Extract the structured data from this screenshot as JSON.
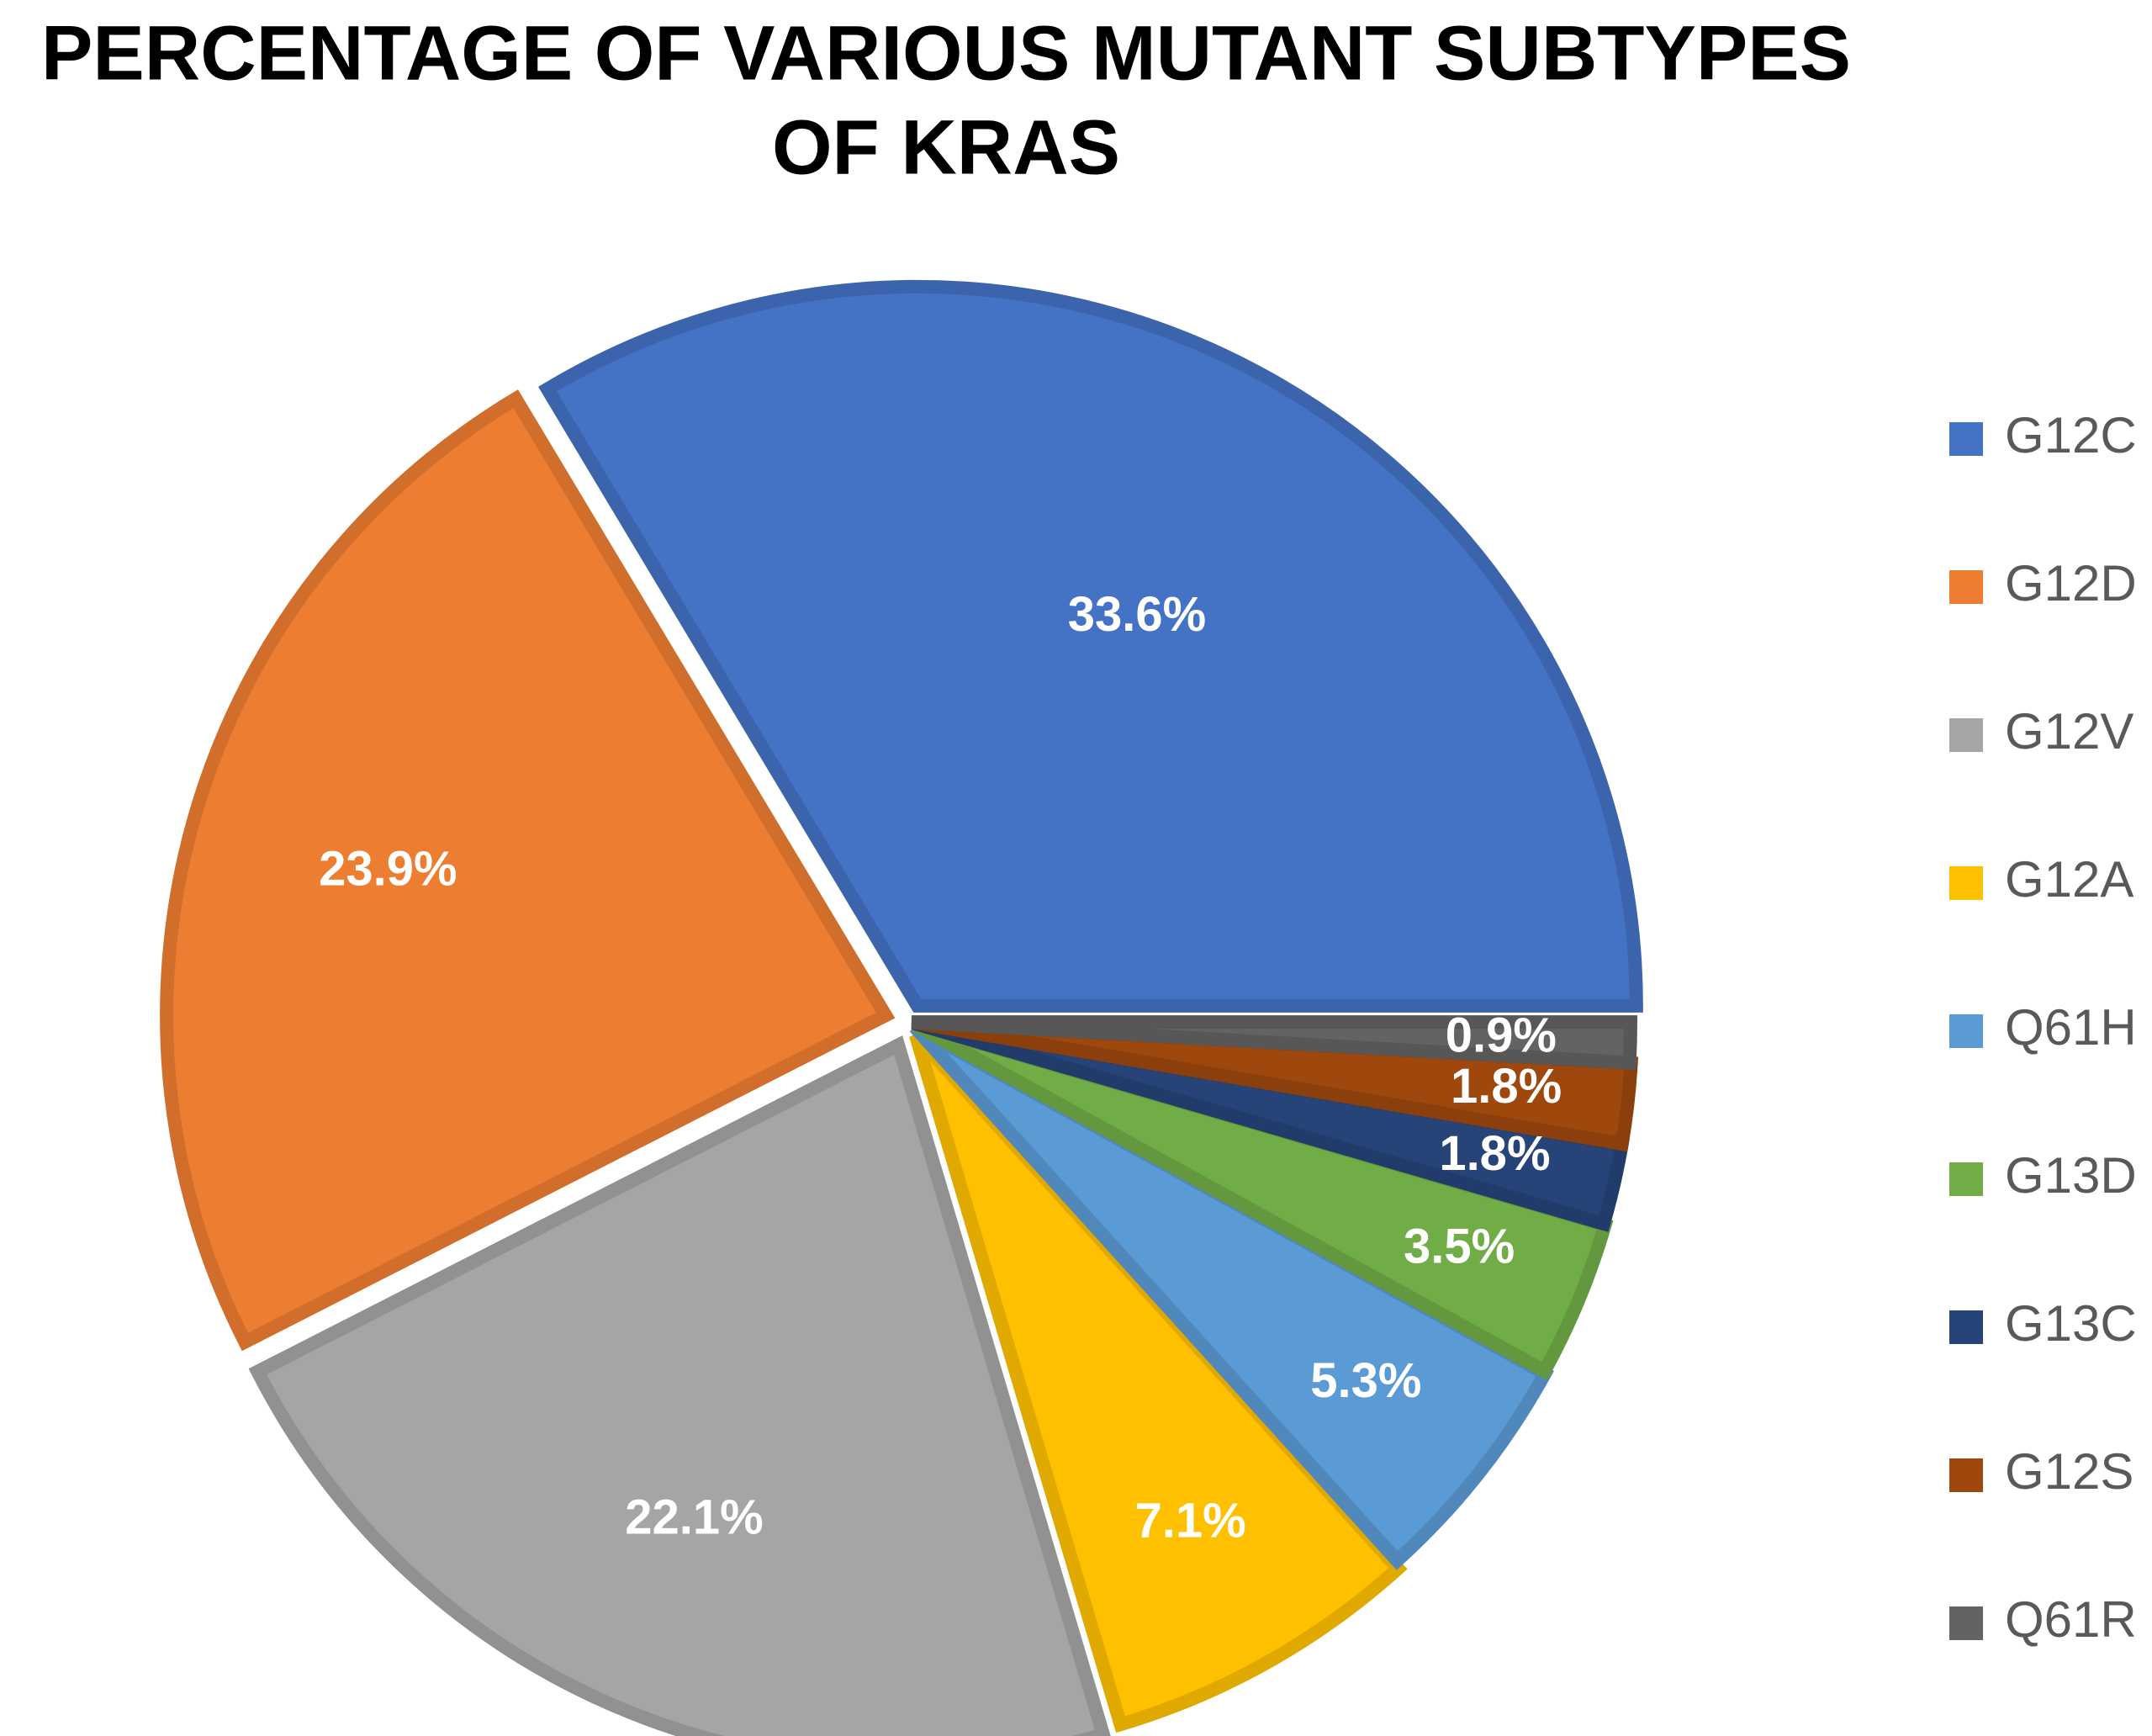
{
  "chart_data": {
    "type": "pie",
    "title": "PERCENTAGE OF VARIOUS MUTANT SUBTYPES OF KRAS",
    "title_lines": [
      "PERCENTAGE OF VARIOUS MUTANT SUBTYPES",
      "OF KRAS"
    ],
    "categories": [
      "G12C",
      "G12D",
      "G12V",
      "G12A",
      "Q61H",
      "G13D",
      "G13C",
      "G12S",
      "Q61R"
    ],
    "values": [
      33.6,
      23.9,
      22.1,
      7.1,
      5.3,
      3.5,
      1.8,
      1.8,
      0.9
    ],
    "labels": [
      "33.6%",
      "23.9%",
      "22.1%",
      "7.1%",
      "5.3%",
      "3.5%",
      "1.8%",
      "1.8%",
      "0.9%"
    ],
    "colors": [
      "#4472C4",
      "#ED7D31",
      "#A5A5A5",
      "#FFC000",
      "#5B9BD5",
      "#70AD47",
      "#264478",
      "#9E480E",
      "#636363"
    ],
    "legend_position": "right",
    "exploded": true
  }
}
